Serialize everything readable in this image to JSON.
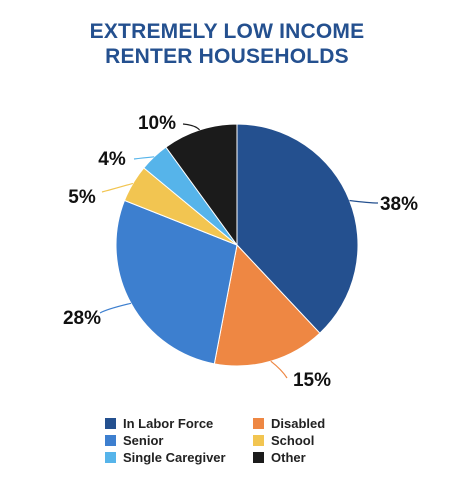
{
  "chart_data": {
    "type": "pie",
    "title": [
      "EXTREMELY LOW INCOME",
      "RENTER HOUSEHOLDS"
    ],
    "legend_position": "bottom",
    "slices": [
      {
        "label": "In Labor Force",
        "value": 38,
        "display": "38%",
        "color": "#24508f"
      },
      {
        "label": "Disabled",
        "value": 15,
        "display": "15%",
        "color": "#ee8743"
      },
      {
        "label": "Senior",
        "value": 28,
        "display": "28%",
        "color": "#3d7fcf"
      },
      {
        "label": "School",
        "value": 5,
        "display": "5%",
        "color": "#f2c551"
      },
      {
        "label": "Single Caregiver",
        "value": 4,
        "display": "4%",
        "color": "#56b4ea"
      },
      {
        "label": "Other",
        "value": 10,
        "display": "10%",
        "color": "#1b1b1b"
      }
    ],
    "legend_order": [
      "In Labor Force",
      "Disabled",
      "Senior",
      "School",
      "Single Caregiver",
      "Other"
    ]
  }
}
